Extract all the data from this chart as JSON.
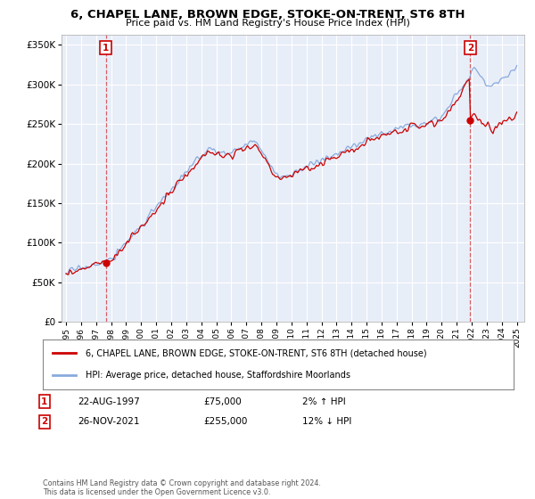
{
  "title": "6, CHAPEL LANE, BROWN EDGE, STOKE-ON-TRENT, ST6 8TH",
  "subtitle": "Price paid vs. HM Land Registry's House Price Index (HPI)",
  "legend_line1": "6, CHAPEL LANE, BROWN EDGE, STOKE-ON-TRENT, ST6 8TH (detached house)",
  "legend_line2": "HPI: Average price, detached house, Staffordshire Moorlands",
  "sale1_date": "22-AUG-1997",
  "sale1_price": "£75,000",
  "sale1_hpi": "2% ↑ HPI",
  "sale1_year": 1997.65,
  "sale1_value": 75000,
  "sale2_date": "26-NOV-2021",
  "sale2_price": "£255,000",
  "sale2_hpi": "12% ↓ HPI",
  "sale2_year": 2021.9,
  "sale2_value": 255000,
  "vline1_x": 1997.65,
  "vline2_x": 2021.9,
  "ylim": [
    0,
    362500
  ],
  "xlim": [
    1994.7,
    2025.5
  ],
  "footer": "Contains HM Land Registry data © Crown copyright and database right 2024.\nThis data is licensed under the Open Government Licence v3.0.",
  "line_color": "#cc0000",
  "hpi_color": "#88aadd",
  "vline_color": "#cc0000",
  "background_color": "#ffffff",
  "plot_bg_color": "#e8eef8",
  "grid_color": "#ffffff"
}
